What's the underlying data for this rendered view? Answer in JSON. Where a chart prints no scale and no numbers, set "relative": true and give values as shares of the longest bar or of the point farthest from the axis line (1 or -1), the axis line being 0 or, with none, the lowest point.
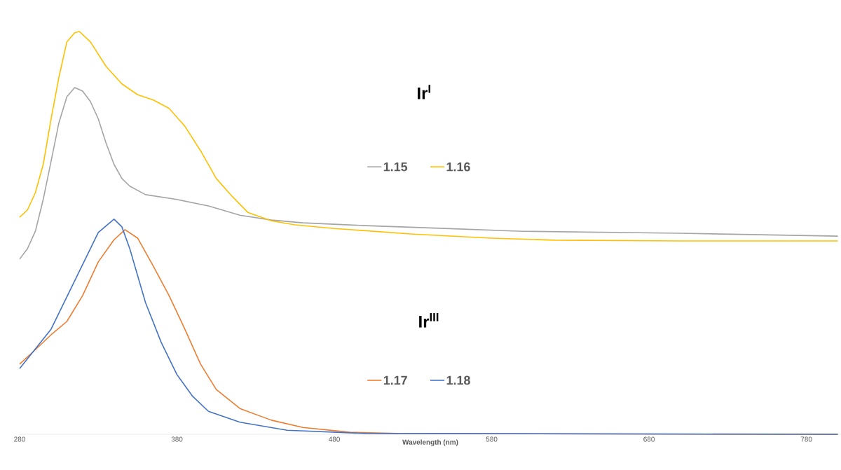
{
  "chart_data": {
    "type": "line",
    "relative": true,
    "xlabel": "Wavelength (nm)",
    "xlim": [
      280,
      802
    ],
    "xticks": [
      280,
      380,
      480,
      580,
      680,
      780
    ],
    "legend": "right",
    "annotations": [
      "Ir$^{I}$",
      "Ir$^{III}$"
    ],
    "series": [
      {
        "name": "1.15",
        "color": "#a5a5a5",
        "x": [
          280,
          285,
          290,
          295,
          300,
          305,
          310,
          315,
          320,
          325,
          330,
          335,
          340,
          345,
          350,
          360,
          380,
          400,
          420,
          440,
          460,
          500,
          550,
          600,
          700,
          800
        ],
        "values": [
          0.435,
          0.461,
          0.504,
          0.583,
          0.678,
          0.774,
          0.838,
          0.861,
          0.852,
          0.826,
          0.783,
          0.722,
          0.67,
          0.635,
          0.616,
          0.595,
          0.583,
          0.567,
          0.544,
          0.532,
          0.525,
          0.518,
          0.511,
          0.504,
          0.499,
          0.492
        ]
      },
      {
        "name": "1.16",
        "color": "#ffc000",
        "x": [
          280,
          285,
          290,
          295,
          300,
          305,
          310,
          315,
          318,
          325,
          335,
          345,
          355,
          365,
          375,
          385,
          395,
          405,
          415,
          425,
          440,
          455,
          480,
          530,
          580,
          620,
          700,
          800
        ],
        "values": [
          0.539,
          0.557,
          0.6,
          0.67,
          0.783,
          0.887,
          0.974,
          0.997,
          1.0,
          0.974,
          0.913,
          0.87,
          0.843,
          0.83,
          0.809,
          0.765,
          0.704,
          0.635,
          0.591,
          0.551,
          0.53,
          0.52,
          0.511,
          0.497,
          0.487,
          0.482,
          0.48,
          0.48
        ]
      },
      {
        "name": "1.17",
        "color": "#ed7d31",
        "x": [
          280,
          290,
          300,
          310,
          320,
          330,
          340,
          347,
          355,
          365,
          375,
          385,
          395,
          405,
          420,
          440,
          460,
          490,
          520,
          800
        ],
        "values": [
          0.174,
          0.21,
          0.247,
          0.28,
          0.344,
          0.428,
          0.483,
          0.508,
          0.487,
          0.417,
          0.344,
          0.261,
          0.174,
          0.111,
          0.064,
          0.035,
          0.017,
          0.005,
          0.002,
          0
        ]
      },
      {
        "name": "1.18",
        "color": "#4472c4",
        "x": [
          280,
          300,
          320,
          330,
          340,
          345,
          350,
          360,
          370,
          380,
          390,
          400,
          420,
          450,
          500,
          800
        ],
        "values": [
          0.163,
          0.261,
          0.421,
          0.501,
          0.534,
          0.515,
          0.461,
          0.327,
          0.228,
          0.148,
          0.094,
          0.057,
          0.03,
          0.01,
          0.002,
          0
        ]
      }
    ]
  }
}
